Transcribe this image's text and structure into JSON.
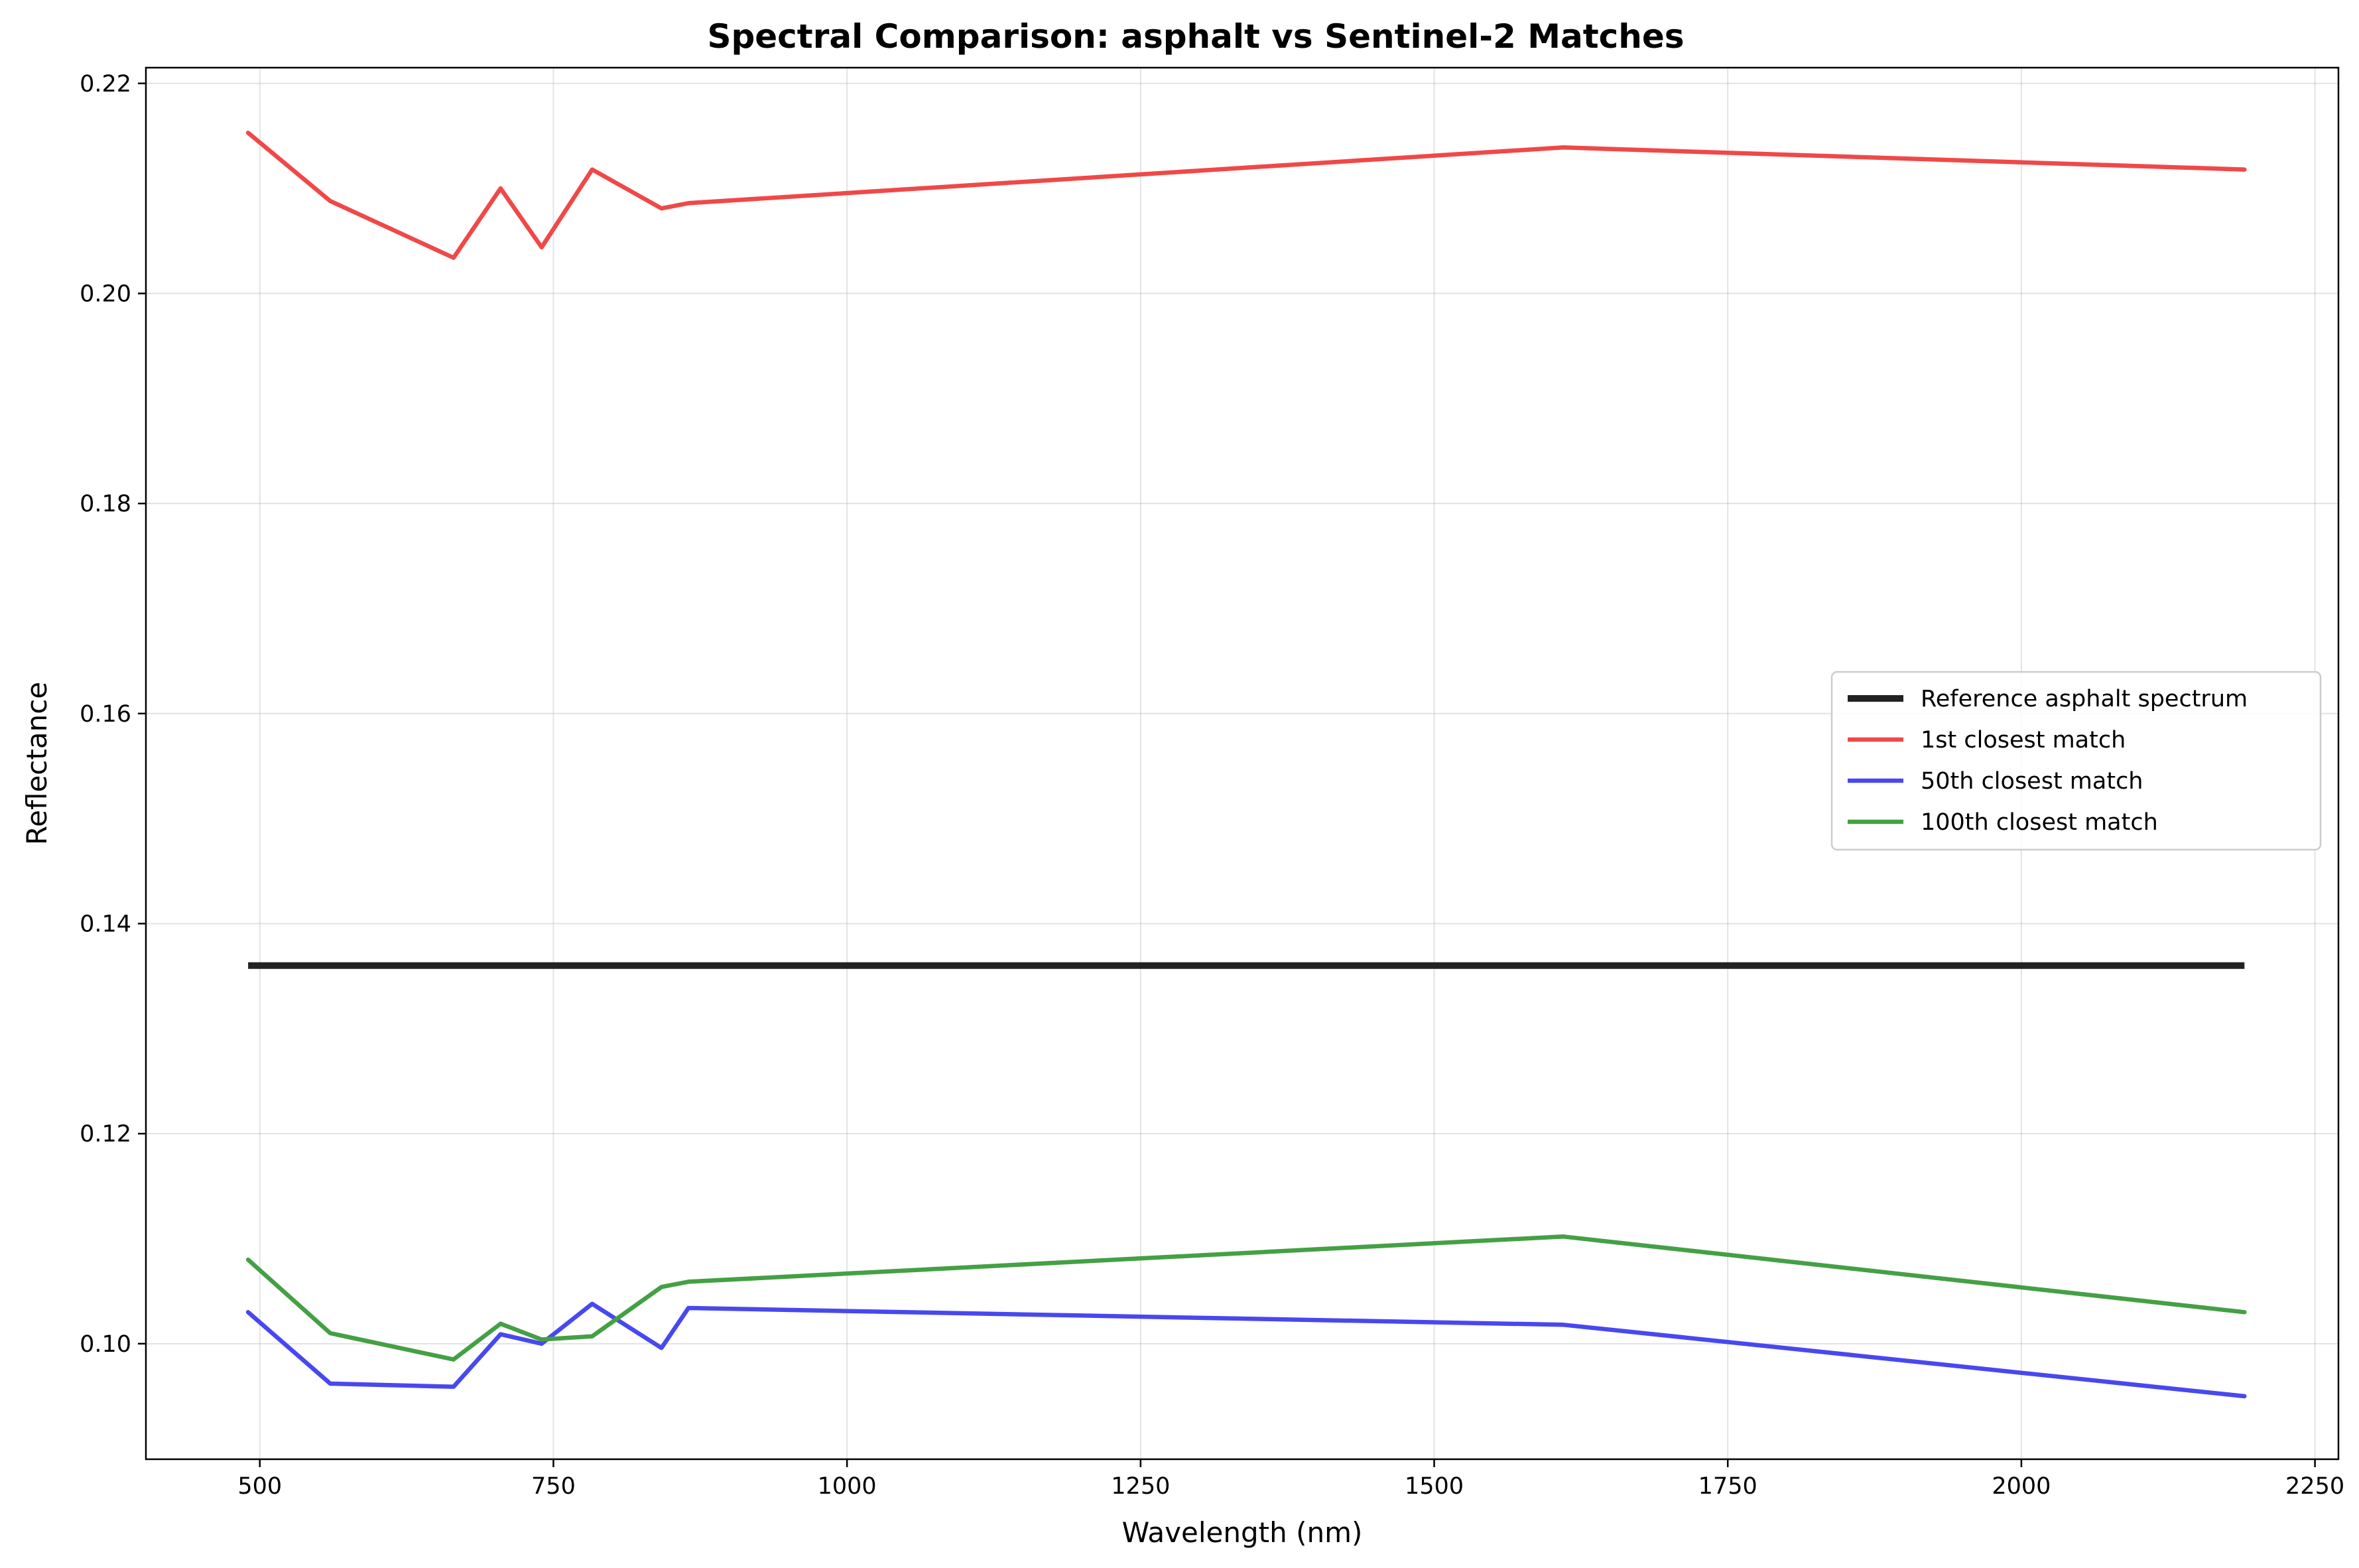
{
  "chart_data": {
    "type": "line",
    "title": "Spectral Comparison: asphalt vs Sentinel-2 Matches",
    "xlabel": "Wavelength (nm)",
    "ylabel": "Reflectance",
    "xlim": [
      403,
      2270
    ],
    "ylim": [
      0.089,
      0.2215
    ],
    "xticks": [
      500,
      750,
      1000,
      1250,
      1500,
      1750,
      2000,
      2250
    ],
    "xtick_labels": [
      "500",
      "750",
      "1000",
      "1250",
      "1500",
      "1750",
      "2000",
      "2250"
    ],
    "yticks": [
      0.1,
      0.12,
      0.14,
      0.16,
      0.18,
      0.2,
      0.22
    ],
    "ytick_labels": [
      "0.10",
      "0.12",
      "0.14",
      "0.16",
      "0.18",
      "0.20",
      "0.22"
    ],
    "grid": true,
    "legend_position": "center-right",
    "x": [
      490,
      560,
      665,
      705,
      740,
      783,
      842,
      865,
      1610,
      2190
    ],
    "series": [
      {
        "name": "Reference asphalt spectrum",
        "color": "#222222",
        "values": [
          0.136,
          0.136,
          0.136,
          0.136,
          0.136,
          0.136,
          0.136,
          0.136,
          0.136,
          0.136
        ]
      },
      {
        "name": "1st closest match",
        "color": "#f04848",
        "values": [
          0.2153,
          0.2088,
          0.2034,
          0.21,
          0.2044,
          0.2118,
          0.2081,
          0.2086,
          0.2139,
          0.2118
        ]
      },
      {
        "name": "50th closest match",
        "color": "#4848f0",
        "values": [
          0.103,
          0.0962,
          0.0959,
          0.1009,
          0.1,
          0.1038,
          0.0996,
          0.1034,
          0.1018,
          0.095
        ]
      },
      {
        "name": "100th closest match",
        "color": "#44a044",
        "values": [
          0.108,
          0.101,
          0.0985,
          0.1019,
          0.1004,
          0.1007,
          0.1054,
          0.1059,
          0.1102,
          0.103
        ]
      }
    ]
  }
}
